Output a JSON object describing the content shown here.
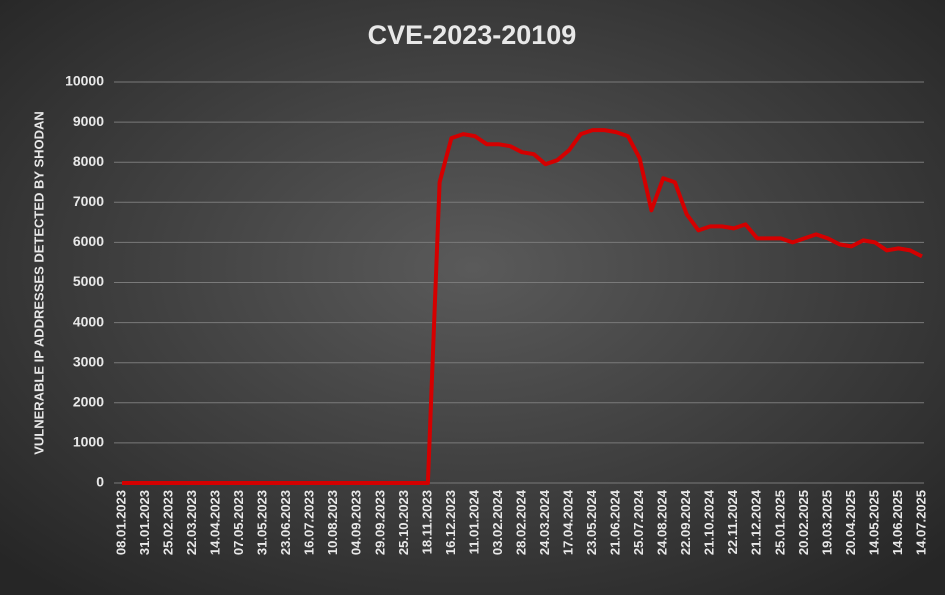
{
  "chart_data": {
    "type": "line",
    "title": "CVE-2023-20109",
    "y_label": "VULNERABLE IP ADDRESSES DETECTED BY SHODAN",
    "categories": [
      "08.01.2023",
      null,
      "31.01.2023",
      null,
      "25.02.2023",
      null,
      "22.03.2023",
      null,
      "14.04.2023",
      null,
      "07.05.2023",
      null,
      "31.05.2023",
      null,
      "23.06.2023",
      null,
      "16.07.2023",
      null,
      "10.08.2023",
      null,
      "04.09.2023",
      null,
      "29.09.2023",
      null,
      "25.10.2023",
      null,
      "18.11.2023",
      null,
      "16.12.2023",
      null,
      "11.01.2024",
      null,
      "03.02.2024",
      null,
      "28.02.2024",
      null,
      "24.03.2024",
      null,
      "17.04.2024",
      null,
      "23.05.2024",
      null,
      "21.06.2024",
      null,
      "25.07.2024",
      null,
      "24.08.2024",
      null,
      "22.09.2024",
      null,
      "21.10.2024",
      null,
      "22.11.2024",
      null,
      "21.12.2024",
      null,
      "25.01.2025",
      null,
      "20.02.2025",
      null,
      "19.03.2025",
      null,
      "20.04.2025",
      null,
      "14.05.2025",
      null,
      "14.06.2025",
      null,
      "14.07.2025"
    ],
    "series": [
      {
        "name": "CVE-2023-20109",
        "color": "#d40000",
        "values": [
          0,
          0,
          0,
          0,
          0,
          0,
          0,
          0,
          0,
          0,
          0,
          0,
          0,
          0,
          0,
          0,
          0,
          0,
          0,
          0,
          0,
          0,
          0,
          0,
          0,
          0,
          0,
          7500,
          8600,
          8700,
          8650,
          8450,
          8450,
          8400,
          8250,
          8200,
          7950,
          8050,
          8300,
          8700,
          8800,
          8800,
          8750,
          8650,
          8100,
          6800,
          7600,
          7500,
          6700,
          6300,
          6400,
          6400,
          6350,
          6450,
          6100,
          6100,
          6100,
          6000,
          6100,
          6200,
          6100,
          5950,
          5900,
          6050,
          6000,
          5800,
          5850,
          5800,
          5650
        ]
      }
    ],
    "ylim": [
      0,
      10000
    ],
    "yticks": [
      0,
      1000,
      2000,
      3000,
      4000,
      5000,
      6000,
      7000,
      8000,
      9000,
      10000
    ],
    "grid": true
  }
}
